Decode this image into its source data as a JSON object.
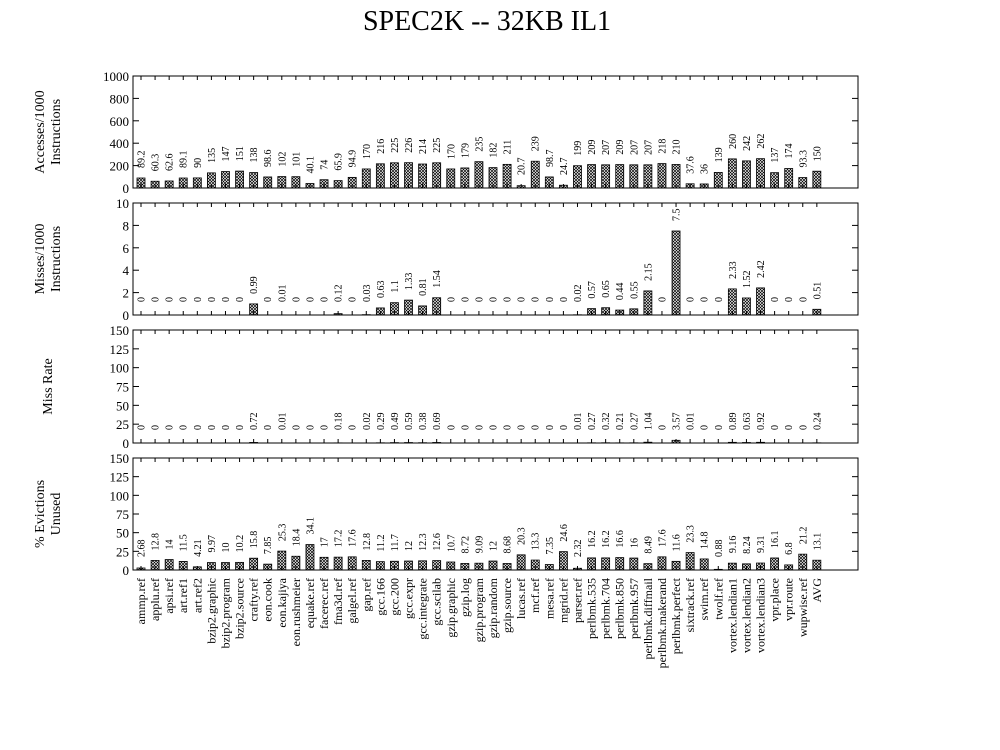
{
  "chart_data": [
    {
      "type": "bar",
      "title": "SPEC2K -- 32KB IL1",
      "ylabel": [
        "Accesses/1000",
        "Instructions"
      ],
      "ylim": [
        0,
        1000
      ],
      "yticks": [
        0,
        200,
        400,
        600,
        800,
        1000
      ],
      "color": "#000000",
      "values": [
        89.2,
        60.3,
        62.6,
        89.1,
        90,
        135,
        147,
        151,
        138,
        98.6,
        102,
        101,
        40.1,
        74,
        65.9,
        94.9,
        170,
        216,
        225,
        226,
        214,
        225,
        170,
        179,
        235,
        182,
        211,
        20.7,
        239,
        98.7,
        24.7,
        199,
        209,
        207,
        209,
        207,
        207,
        218,
        210,
        37.6,
        36,
        139,
        260,
        242,
        262,
        137,
        174,
        93.3,
        150
      ]
    },
    {
      "type": "bar",
      "ylabel": [
        "Misses/1000",
        "Instructions"
      ],
      "ylim": [
        0,
        10
      ],
      "yticks": [
        0,
        2,
        4,
        6,
        8,
        10
      ],
      "color": "#000000",
      "values": [
        0,
        0,
        0,
        0,
        0,
        0,
        0,
        0,
        0.99,
        0,
        0.01,
        0,
        0,
        0,
        0.12,
        0,
        0.03,
        0.63,
        1.1,
        1.33,
        0.81,
        1.54,
        0,
        0,
        0,
        0,
        0,
        0,
        0,
        0,
        0,
        0.02,
        0.57,
        0.65,
        0.44,
        0.55,
        2.15,
        0,
        7.5,
        0,
        0,
        0,
        2.33,
        1.52,
        2.42,
        0,
        0,
        0,
        0.51
      ]
    },
    {
      "type": "bar",
      "ylabel": [
        "Miss Rate"
      ],
      "ylim": [
        0,
        150
      ],
      "yticks": [
        0,
        25,
        50,
        75,
        100,
        125,
        150
      ],
      "color": "#000000",
      "values": [
        0,
        0,
        0,
        0,
        0,
        0,
        0,
        0,
        0.72,
        0,
        0.01,
        0,
        0,
        0,
        0.18,
        0,
        0.02,
        0.29,
        0.49,
        0.59,
        0.38,
        0.69,
        0,
        0,
        0,
        0,
        0,
        0,
        0,
        0,
        0,
        0.01,
        0.27,
        0.32,
        0.21,
        0.27,
        1.04,
        0,
        3.57,
        0.01,
        0,
        0,
        0.89,
        0.63,
        0.92,
        0,
        0,
        0,
        0.24
      ]
    },
    {
      "type": "bar",
      "ylabel": [
        "% Evictions",
        "Unused"
      ],
      "ylim": [
        0,
        150
      ],
      "yticks": [
        0,
        25,
        50,
        75,
        100,
        125,
        150
      ],
      "color": "#000000",
      "categories": [
        "ammp.ref",
        "applu.ref",
        "apsi.ref",
        "art.ref1",
        "art.ref2",
        "bzip2.graphic",
        "bzip2.program",
        "bzip2.source",
        "crafty.ref",
        "eon.cook",
        "eon.kajiya",
        "eon.rushmeier",
        "equake.ref",
        "facerec.ref",
        "fma3d.ref",
        "galgel.ref",
        "gap.ref",
        "gcc.166",
        "gcc.200",
        "gcc.expr",
        "gcc.integrate",
        "gcc.scilab",
        "gzip.graphic",
        "gzip.log",
        "gzip.program",
        "gzip.random",
        "gzip.source",
        "lucas.ref",
        "mcf.ref",
        "mesa.ref",
        "mgrid.ref",
        "parser.ref",
        "perlbmk.535",
        "perlbmk.704",
        "perlbmk.850",
        "perlbmk.957",
        "perlbmk.diffmail",
        "perlbmk.makerand",
        "perlbmk.perfect",
        "sixtrack.ref",
        "swim.ref",
        "twolf.ref",
        "vortex.lendian1",
        "vortex.lendian2",
        "vortex.lendian3",
        "vpr.place",
        "vpr.route",
        "wupwise.ref",
        "AVG"
      ],
      "values": [
        2.68,
        12.8,
        14,
        11.5,
        4.21,
        9.97,
        10,
        10.2,
        15.8,
        7.85,
        25.3,
        18.4,
        34.1,
        17,
        17.2,
        17.6,
        12.8,
        11.2,
        11.7,
        12,
        12.3,
        12.6,
        10.7,
        8.72,
        9.09,
        12,
        8.68,
        20.3,
        13.3,
        7.35,
        24.6,
        2.32,
        16.2,
        16.2,
        16.6,
        16,
        8.49,
        17.6,
        11.6,
        23.3,
        14.8,
        0.88,
        9.16,
        8.24,
        9.31,
        16.1,
        6.8,
        21.2,
        13.1
      ]
    }
  ]
}
